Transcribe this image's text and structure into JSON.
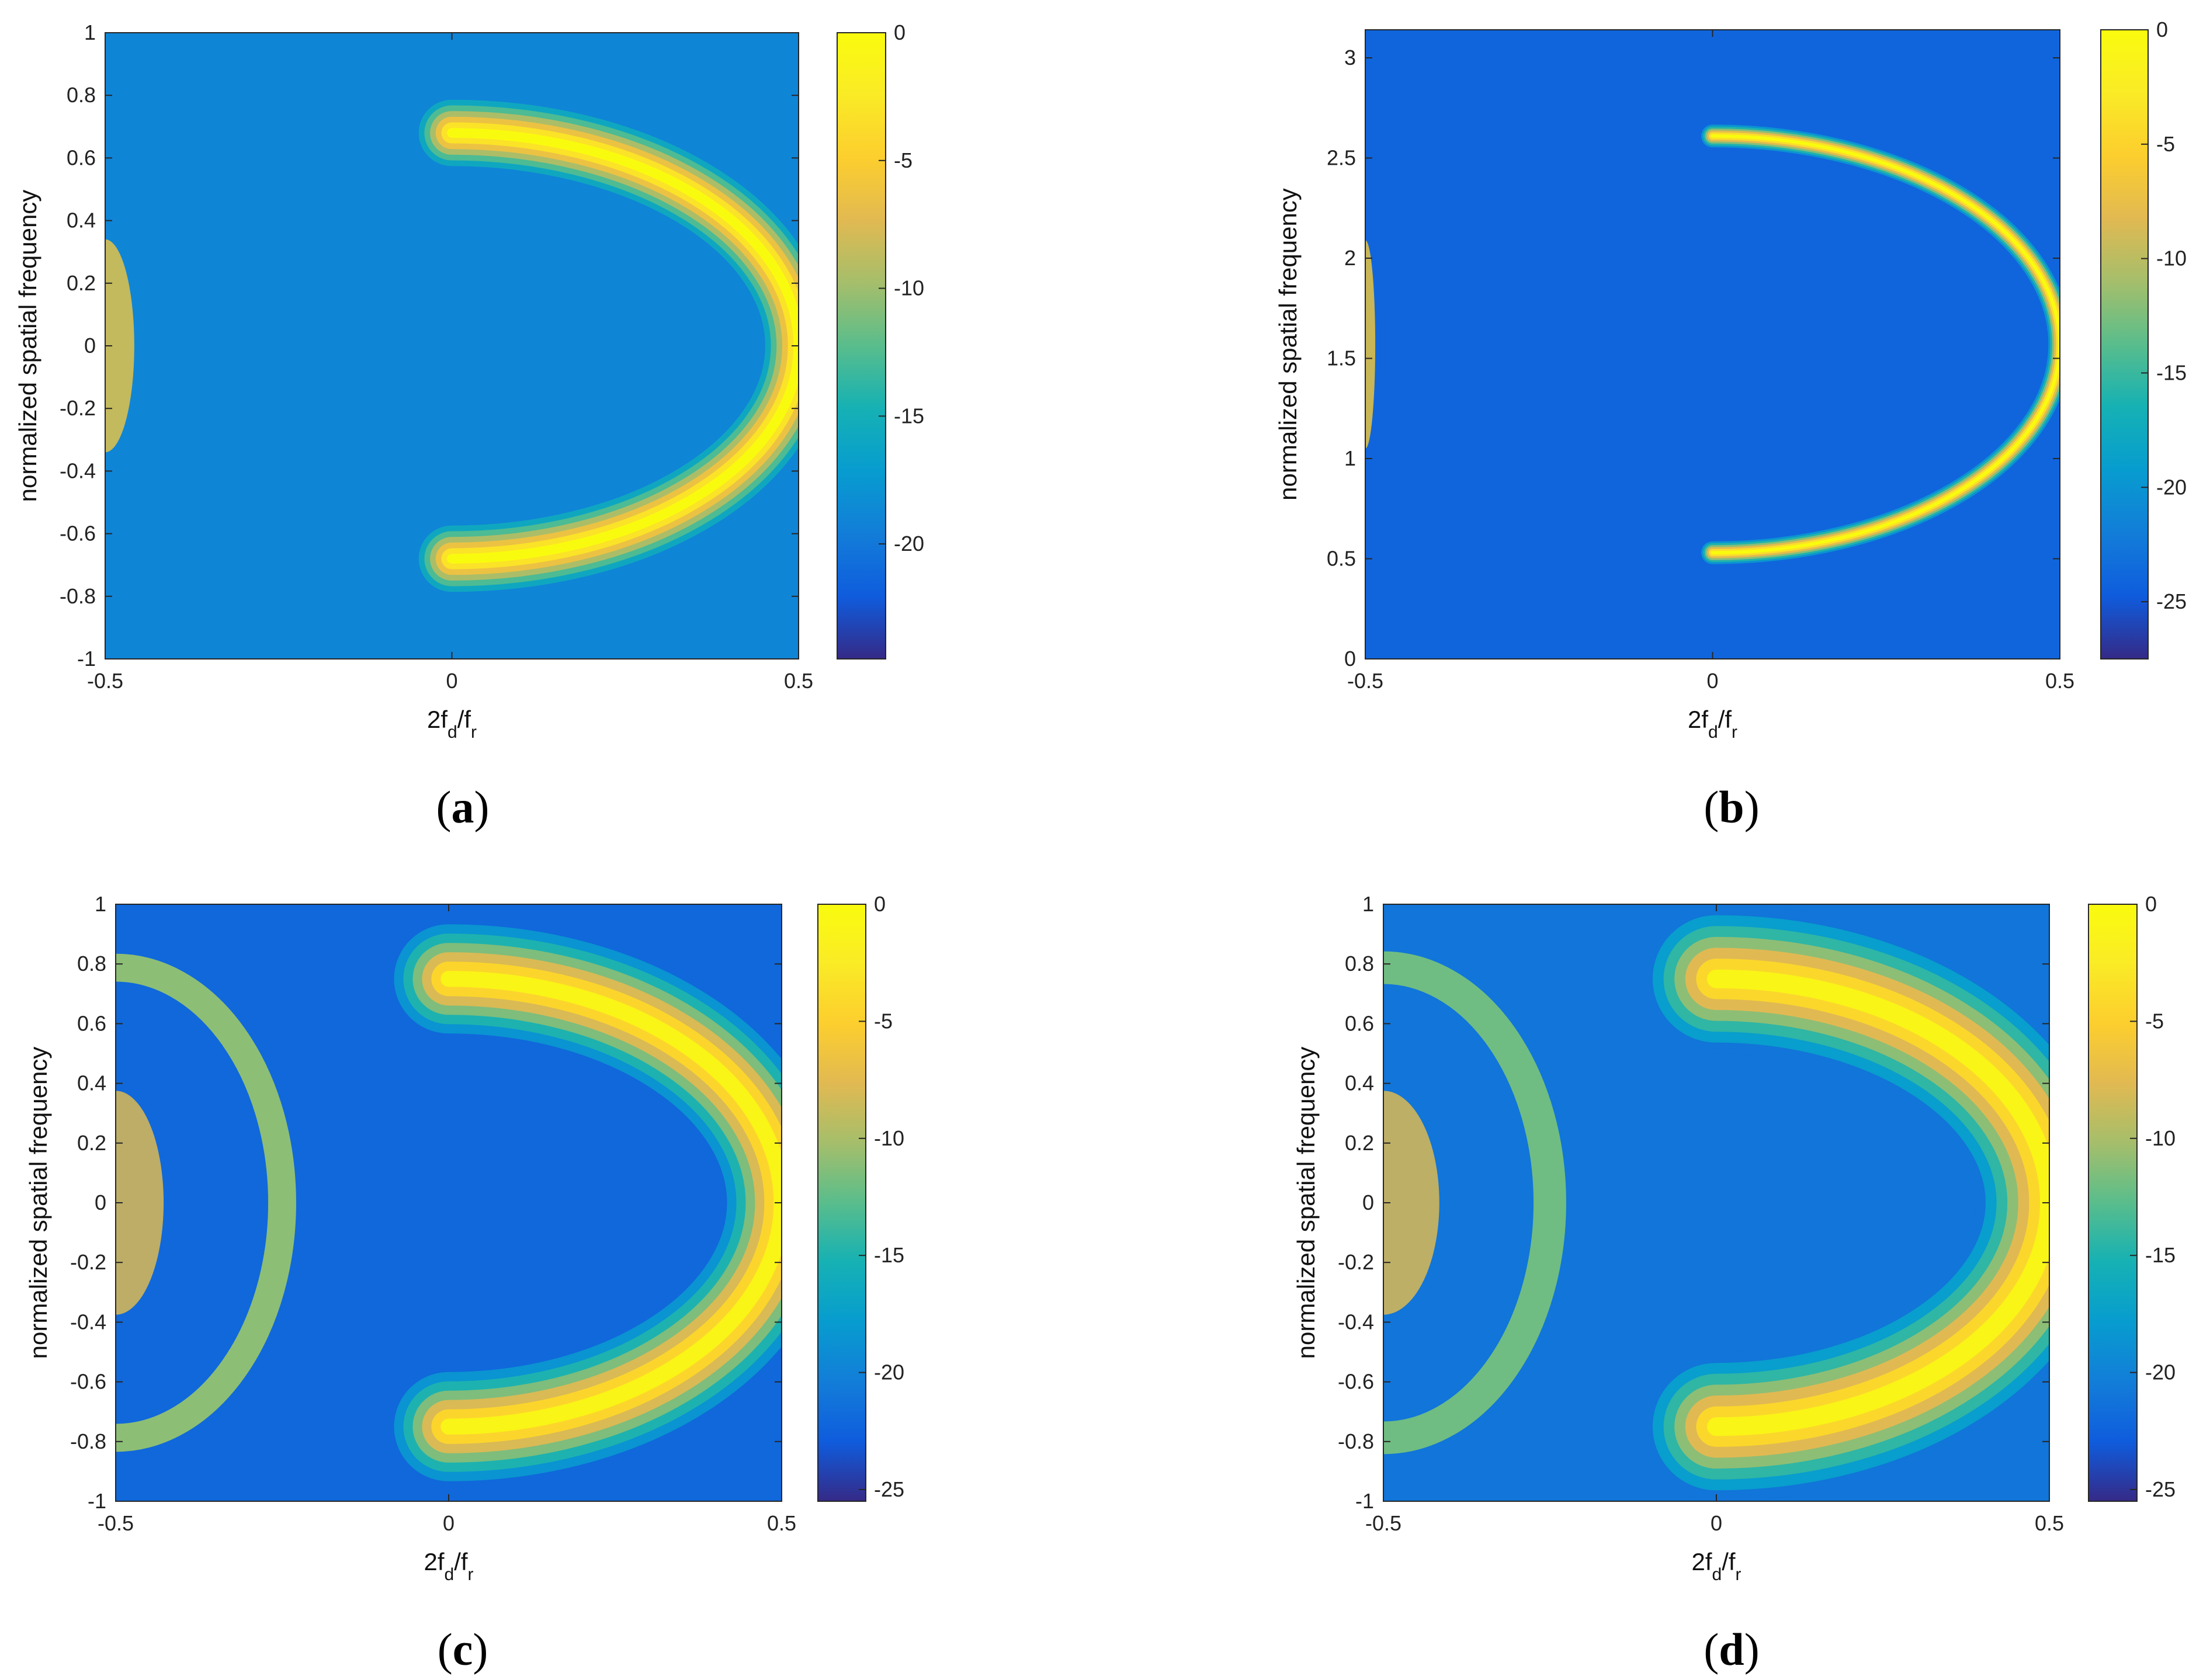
{
  "chart_data": [
    {
      "type": "heatmap",
      "panel_label": "(a)",
      "panel_letter": "a",
      "xlabel": "2f_d/f_r",
      "ylabel": "normalized spatial frequency",
      "xlim": [
        -0.5,
        0.5
      ],
      "ylim": [
        -1,
        1
      ],
      "x_ticks": [
        -0.5,
        0,
        0.5
      ],
      "x_tick_labels": [
        "-0.5",
        "0",
        "0.5"
      ],
      "y_ticks": [
        -1,
        -0.8,
        -0.6,
        -0.4,
        -0.2,
        0,
        0.2,
        0.4,
        0.6,
        0.8,
        1
      ],
      "y_tick_labels": [
        "-1",
        "-0.8",
        "-0.6",
        "-0.4",
        "-0.2",
        "0",
        "0.2",
        "0.4",
        "0.6",
        "0.8",
        "1"
      ],
      "colorbar": {
        "range": [
          -24.5,
          0
        ],
        "ticks": [
          0,
          -5,
          -10,
          -15,
          -20
        ],
        "tick_labels": [
          "0",
          "-5",
          "-10",
          "-15",
          "-20"
        ],
        "colormap": "parula"
      },
      "clutter_ridge": {
        "shape": "ellipse_half",
        "center_x": 0.0,
        "center_y": 0.0,
        "semi_x": 0.5,
        "semi_y": 0.68,
        "peak_level": 0,
        "background_level": -19,
        "ridge_width_x": 0.035,
        "mirror_ridge": false
      }
    },
    {
      "type": "heatmap",
      "panel_label": "(b)",
      "panel_letter": "b",
      "xlabel": "2f_d/f_r",
      "ylabel": "normalized spatial frequency",
      "xlim": [
        -0.5,
        0.5
      ],
      "ylim": [
        0,
        3.14
      ],
      "x_ticks": [
        -0.5,
        0,
        0.5
      ],
      "x_tick_labels": [
        "-0.5",
        "0",
        "0.5"
      ],
      "y_ticks": [
        0,
        0.5,
        1,
        1.5,
        2,
        2.5,
        3
      ],
      "y_tick_labels": [
        "0",
        "0.5",
        "1",
        "1.5",
        "2",
        "2.5",
        "3"
      ],
      "colorbar": {
        "range": [
          -27.5,
          0
        ],
        "ticks": [
          0,
          -5,
          -10,
          -15,
          -20,
          -25
        ],
        "tick_labels": [
          "0",
          "-5",
          "-10",
          "-15",
          "-20",
          "-25"
        ],
        "colormap": "parula"
      },
      "clutter_ridge": {
        "shape": "ellipse_half",
        "center_x": 0.0,
        "center_y": 1.57,
        "semi_x": 0.5,
        "semi_y": 1.04,
        "peak_level": 0,
        "background_level": -24,
        "ridge_width_x": 0.012,
        "mirror_ridge": false
      }
    },
    {
      "type": "heatmap",
      "panel_label": "(c)",
      "panel_letter": "c",
      "xlabel": "2f_d/f_r",
      "ylabel": "normalized spatial frequency",
      "xlim": [
        -0.5,
        0.5
      ],
      "ylim": [
        -1,
        1
      ],
      "x_ticks": [
        -0.5,
        0,
        0.5
      ],
      "x_tick_labels": [
        "-0.5",
        "0",
        "0.5"
      ],
      "y_ticks": [
        -1,
        -0.8,
        -0.6,
        -0.4,
        -0.2,
        0,
        0.2,
        0.4,
        0.6,
        0.8,
        1
      ],
      "y_tick_labels": [
        "-1",
        "-0.8",
        "-0.6",
        "-0.4",
        "-0.2",
        "0",
        "0.2",
        "0.4",
        "0.6",
        "0.8",
        "1"
      ],
      "colorbar": {
        "range": [
          -25.5,
          0
        ],
        "ticks": [
          0,
          -5,
          -10,
          -15,
          -20,
          -25
        ],
        "tick_labels": [
          "0",
          "-5",
          "-10",
          "-15",
          "-20",
          "-25"
        ],
        "colormap": "parula"
      },
      "clutter_ridge": {
        "shape": "ellipse_half",
        "center_x": 0.0,
        "center_y": 0.0,
        "semi_x": 0.5,
        "semi_y": 0.75,
        "peak_level": -1,
        "background_level": -22,
        "ridge_width_x": 0.06,
        "mirror_ridge": true,
        "mirror_center_x": -0.5,
        "mirror_semi_x": 0.25,
        "mirror_level": -11
      }
    },
    {
      "type": "heatmap",
      "panel_label": "(d)",
      "panel_letter": "d",
      "xlabel": "2f_d/f_r",
      "ylabel": "normalized spatial frequency",
      "xlim": [
        -0.5,
        0.5
      ],
      "ylim": [
        -1,
        1
      ],
      "x_ticks": [
        -0.5,
        0,
        0.5
      ],
      "x_tick_labels": [
        "-0.5",
        "0",
        "0.5"
      ],
      "y_ticks": [
        -1,
        -0.8,
        -0.6,
        -0.4,
        -0.2,
        0,
        0.2,
        0.4,
        0.6,
        0.8,
        1
      ],
      "y_tick_labels": [
        "-1",
        "-0.8",
        "-0.6",
        "-0.4",
        "-0.2",
        "0",
        "0.2",
        "0.4",
        "0.6",
        "0.8",
        "1"
      ],
      "colorbar": {
        "range": [
          -25.5,
          0
        ],
        "ticks": [
          0,
          -5,
          -10,
          -15,
          -20,
          -25
        ],
        "tick_labels": [
          "0",
          "-5",
          "-10",
          "-15",
          "-20",
          "-25"
        ],
        "colormap": "parula"
      },
      "clutter_ridge": {
        "shape": "ellipse_half",
        "center_x": 0.0,
        "center_y": 0.0,
        "semi_x": 0.5,
        "semi_y": 0.75,
        "peak_level": -1,
        "background_level": -21,
        "ridge_width_x": 0.07,
        "mirror_ridge": true,
        "mirror_center_x": -0.5,
        "mirror_semi_x": 0.25,
        "mirror_level": -12
      }
    }
  ]
}
